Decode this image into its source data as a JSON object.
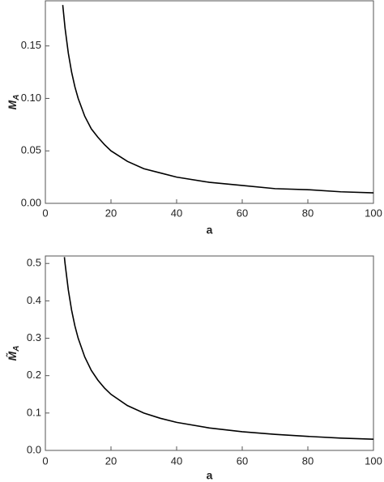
{
  "chart_data": [
    {
      "type": "line",
      "xlabel": "a",
      "ylabel": "M",
      "ylabel_sub": "A",
      "x": [
        5.3,
        6,
        7,
        8,
        9,
        10,
        12,
        14,
        16,
        18,
        20,
        25,
        30,
        35,
        40,
        50,
        60,
        70,
        80,
        90,
        100
      ],
      "series": [
        {
          "color": "#000000",
          "values": [
            0.189,
            0.167,
            0.143,
            0.125,
            0.111,
            0.1,
            0.083,
            0.071,
            0.063,
            0.056,
            0.05,
            0.04,
            0.033,
            0.029,
            0.025,
            0.02,
            0.017,
            0.014,
            0.013,
            0.011,
            0.01
          ]
        }
      ],
      "xlim": [
        0,
        100
      ],
      "ylim": [
        0,
        0.193
      ],
      "xticks": [
        0,
        20,
        40,
        60,
        80,
        100
      ],
      "yticks": [
        {
          "value": 0,
          "label": "0.00"
        },
        0.05,
        {
          "value": 0.1,
          "label": "0.10"
        },
        0.15
      ]
    },
    {
      "type": "line",
      "xlabel": "a",
      "ylabel": "M̃",
      "ylabel_sub": "A",
      "x": [
        5.8,
        6,
        7,
        8,
        9,
        10,
        12,
        14,
        16,
        18,
        20,
        25,
        30,
        35,
        40,
        50,
        60,
        70,
        80,
        90,
        100
      ],
      "series": [
        {
          "color": "#000000",
          "values": [
            0.517,
            0.5,
            0.429,
            0.375,
            0.333,
            0.3,
            0.25,
            0.214,
            0.188,
            0.167,
            0.15,
            0.12,
            0.1,
            0.086,
            0.075,
            0.06,
            0.05,
            0.043,
            0.0375,
            0.033,
            0.03
          ]
        }
      ],
      "xlim": [
        0,
        100
      ],
      "ylim": [
        0,
        0.52
      ],
      "xticks": [
        0,
        20,
        40,
        60,
        80,
        100
      ],
      "yticks": [
        {
          "value": 0,
          "label": "0.0"
        },
        0.1,
        0.2,
        0.3,
        0.4,
        0.5
      ]
    }
  ]
}
